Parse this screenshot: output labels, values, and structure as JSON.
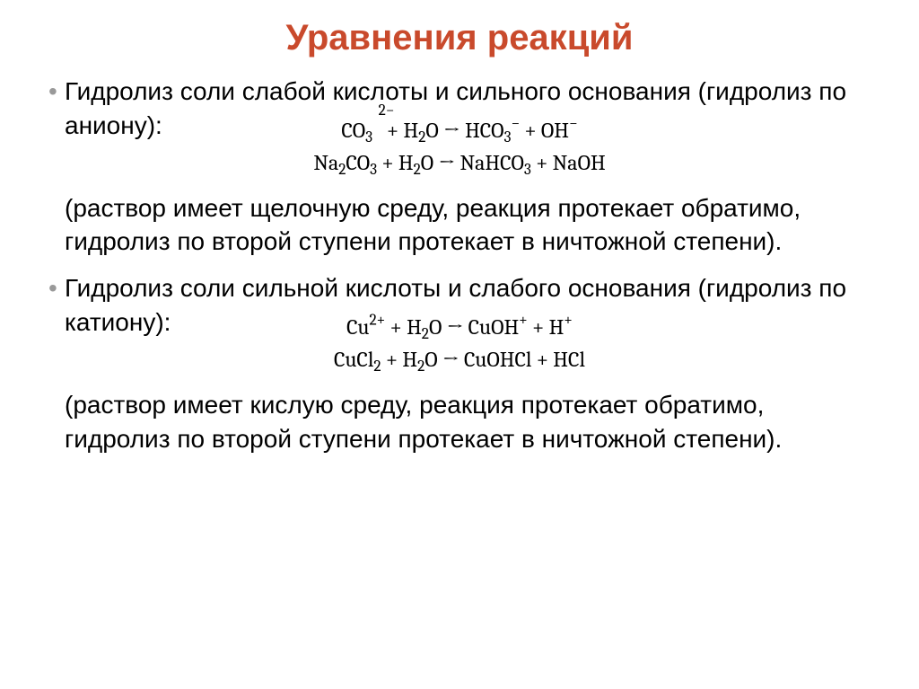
{
  "title": {
    "text": "Уравнения реакций",
    "color": "#c94a2c",
    "fontsize": 40
  },
  "body_fontsize": 28,
  "eq_fontsize": 24,
  "bullet1": "Гидролиз соли слабой кислоты и сильного основания (гидролиз по аниону):",
  "eq_block1": {
    "line1_html": "<span class=\"ion-wrap\">CO<sub>3</sub><span class=\"ion-charge\">2−</span></span>&nbsp;&nbsp; + H<sub>2</sub>O → HCO<sub>3</sub><sup>−</sup> + OH<sup>−</sup>",
    "line2_html": "Na<sub>2</sub>CO<sub>3</sub> + H<sub>2</sub>O → NaHCO<sub>3</sub> + NaOH"
  },
  "para1": "(раствор имеет щелочную среду, реакция протекает обратимо, гидролиз по второй ступени протекает в ничтожной степени).",
  "bullet2": "Гидролиз соли сильной кислоты и слабого основания (гидролиз по катиону):",
  "eq_block2": {
    "line1_html": "Cu<sup>2+</sup> + H<sub>2</sub>O → CuOH<sup>+</sup> + H<sup>+</sup>",
    "line2_html": "CuCl<sub>2</sub> + H<sub>2</sub>O → CuOHCl + HCl"
  },
  "para2": "(раствор имеет кислую среду, реакция протекает обратимо, гидролиз по второй ступени протекает в ничтожной степени)."
}
